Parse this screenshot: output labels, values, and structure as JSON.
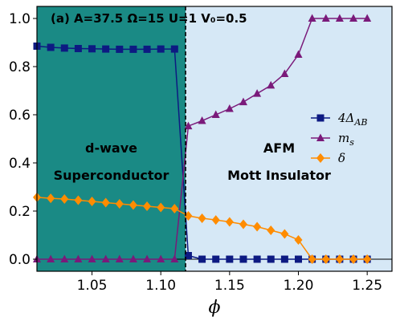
{
  "chart_data": {
    "type": "line",
    "panel_label": "(a)",
    "parameters": [
      {
        "name": "A",
        "value": "37.5"
      },
      {
        "name": "Ω",
        "value": "15"
      },
      {
        "name": "U",
        "value": "1"
      },
      {
        "name": "V₀",
        "value": "0.5"
      }
    ],
    "xlabel": "ϕ",
    "ylabel": "",
    "xlim": [
      1.01,
      1.268
    ],
    "ylim": [
      -0.05,
      1.05
    ],
    "xticks": [
      1.05,
      1.1,
      1.15,
      1.2,
      1.25
    ],
    "xtick_labels": [
      "1.05",
      "1.10",
      "1.15",
      "1.20",
      "1.25"
    ],
    "yticks": [
      0.0,
      0.2,
      0.4,
      0.6,
      0.8,
      1.0
    ],
    "ytick_labels": [
      "0.0",
      "0.2",
      "0.4",
      "0.6",
      "0.8",
      "1.0"
    ],
    "phase_boundary": 1.118,
    "regions": [
      {
        "lines": [
          "d-wave",
          "Superconductor"
        ],
        "color": "#1a8a85",
        "x_range": [
          1.01,
          1.118
        ]
      },
      {
        "lines": [
          "AFM",
          "Mott Insulator"
        ],
        "color": "#d6e8f6",
        "x_range": [
          1.118,
          1.268
        ]
      }
    ],
    "legend": {
      "position": "center-right"
    },
    "series": [
      {
        "name": "4Δ",
        "name_sub": "AB",
        "color": "#0d1a82",
        "marker": "square",
        "x": [
          1.01,
          1.02,
          1.03,
          1.04,
          1.05,
          1.06,
          1.07,
          1.08,
          1.09,
          1.1,
          1.11,
          1.12,
          1.13,
          1.14,
          1.15,
          1.16,
          1.17,
          1.18,
          1.19,
          1.2,
          1.21,
          1.22,
          1.23,
          1.24,
          1.25
        ],
        "y": [
          0.885,
          0.88,
          0.877,
          0.875,
          0.874,
          0.873,
          0.872,
          0.872,
          0.872,
          0.873,
          0.873,
          0.015,
          0.0,
          0.0,
          0.0,
          0.0,
          0.0,
          0.0,
          0.0,
          0.0,
          0.0,
          0.0,
          0.0,
          0.0,
          0.0
        ]
      },
      {
        "name": "m",
        "name_sub": "s",
        "color": "#7a1a7a",
        "marker": "triangle",
        "x": [
          1.01,
          1.02,
          1.03,
          1.04,
          1.05,
          1.06,
          1.07,
          1.08,
          1.09,
          1.1,
          1.11,
          1.12,
          1.13,
          1.14,
          1.15,
          1.16,
          1.17,
          1.18,
          1.19,
          1.2,
          1.21,
          1.22,
          1.23,
          1.24,
          1.25
        ],
        "y": [
          0.0,
          0.0,
          0.0,
          0.0,
          0.0,
          0.0,
          0.0,
          0.0,
          0.0,
          0.0,
          0.0,
          0.553,
          0.575,
          0.6,
          0.625,
          0.653,
          0.688,
          0.722,
          0.77,
          0.85,
          1.0,
          1.0,
          1.0,
          1.0,
          1.0
        ]
      },
      {
        "name": "δ",
        "name_sub": "",
        "color": "#ff8c00",
        "marker": "diamond",
        "x": [
          1.01,
          1.02,
          1.03,
          1.04,
          1.05,
          1.06,
          1.07,
          1.08,
          1.09,
          1.1,
          1.11,
          1.12,
          1.13,
          1.14,
          1.15,
          1.16,
          1.17,
          1.18,
          1.19,
          1.2,
          1.21,
          1.22,
          1.23,
          1.24,
          1.25
        ],
        "y": [
          0.257,
          0.253,
          0.25,
          0.245,
          0.24,
          0.235,
          0.23,
          0.225,
          0.22,
          0.215,
          0.21,
          0.18,
          0.17,
          0.163,
          0.155,
          0.145,
          0.135,
          0.12,
          0.105,
          0.08,
          0.0,
          0.0,
          0.0,
          0.0,
          0.0
        ]
      }
    ]
  }
}
